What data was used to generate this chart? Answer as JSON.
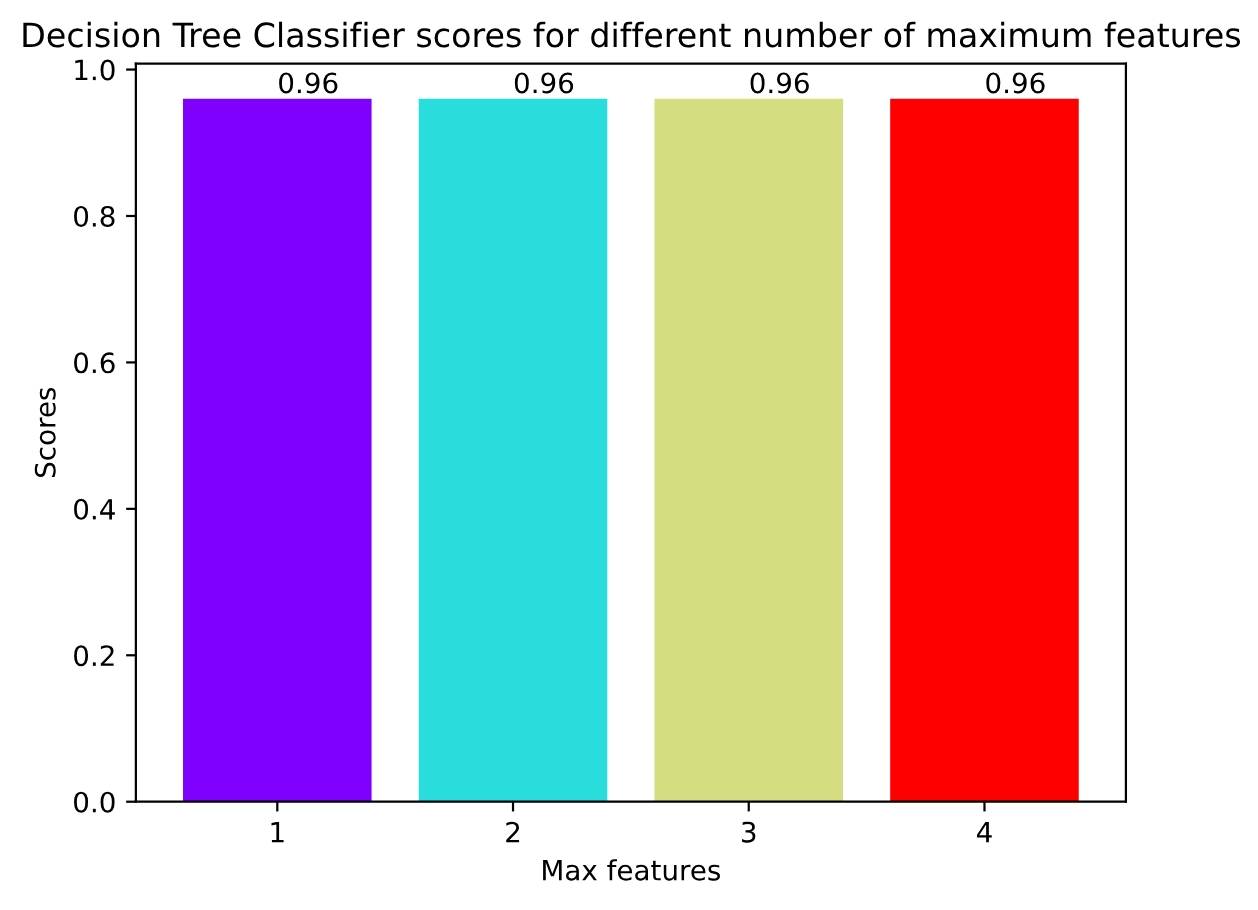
{
  "chart_data": {
    "type": "bar",
    "title": "Decision Tree Classifier scores for different number of maximum features",
    "xlabel": "Max features",
    "ylabel": "Scores",
    "categories": [
      "1",
      "2",
      "3",
      "4"
    ],
    "values": [
      0.96,
      0.96,
      0.96,
      0.96
    ],
    "colors": [
      "#8000ff",
      "#2adddd",
      "#d4dd80",
      "#ff0000"
    ],
    "ylim": [
      0,
      1.008
    ],
    "yticks": [
      {
        "value": 0,
        "label": "0.0"
      },
      {
        "value": 0.2,
        "label": "0.2"
      },
      {
        "value": 0.4,
        "label": "0.4"
      },
      {
        "value": 0.6,
        "label": "0.6"
      },
      {
        "value": 0.8,
        "label": "0.8"
      },
      {
        "value": 1.0,
        "label": "1.0"
      }
    ],
    "data_labels": true,
    "grid": false
  }
}
